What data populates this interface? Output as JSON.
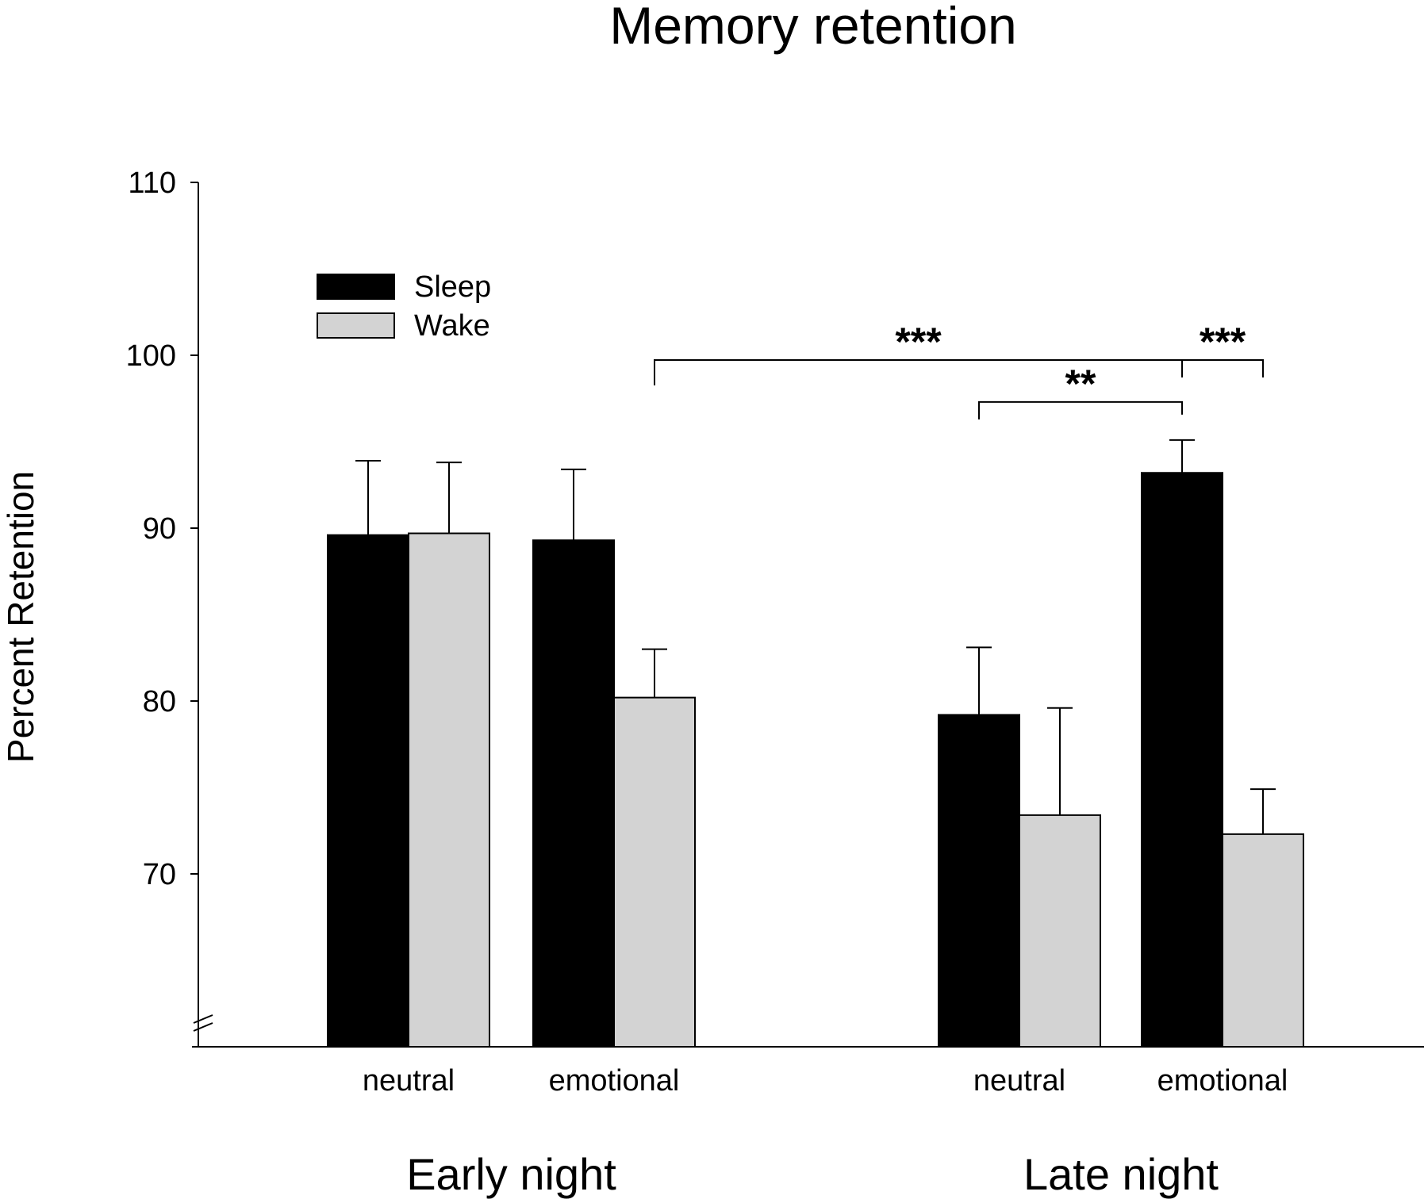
{
  "chart_data": {
    "type": "bar",
    "title": "Memory retention",
    "xlabel": "",
    "ylabel": "Percent Retention",
    "ylim": [
      60,
      110
    ],
    "yticks": [
      70,
      80,
      90,
      100,
      110
    ],
    "axis_break": true,
    "grid": false,
    "legend_position": "top-left",
    "groups": [
      {
        "label": "Early night",
        "categories": [
          "neutral",
          "emotional"
        ]
      },
      {
        "label": "Late night",
        "categories": [
          "neutral",
          "emotional"
        ]
      }
    ],
    "series": [
      {
        "name": "Sleep",
        "color": "#000000",
        "values": [
          89.6,
          89.3,
          79.2,
          93.2
        ],
        "errors": [
          4.3,
          4.1,
          3.9,
          1.9
        ]
      },
      {
        "name": "Wake",
        "color": "#d3d3d3",
        "values": [
          89.7,
          80.2,
          73.4,
          72.3
        ],
        "errors": [
          4.1,
          2.8,
          6.2,
          2.6
        ]
      }
    ],
    "significance": [
      {
        "label": "***",
        "from": "Early night emotional Wake",
        "to": "Late night emotional Sleep",
        "level": 100
      },
      {
        "label": "**",
        "from": "Late night neutral Sleep",
        "to": "Late night emotional Sleep",
        "level": 97.3
      },
      {
        "label": "***",
        "from": "Late night emotional Sleep",
        "to": "Late night emotional Wake",
        "level": 100
      }
    ]
  }
}
